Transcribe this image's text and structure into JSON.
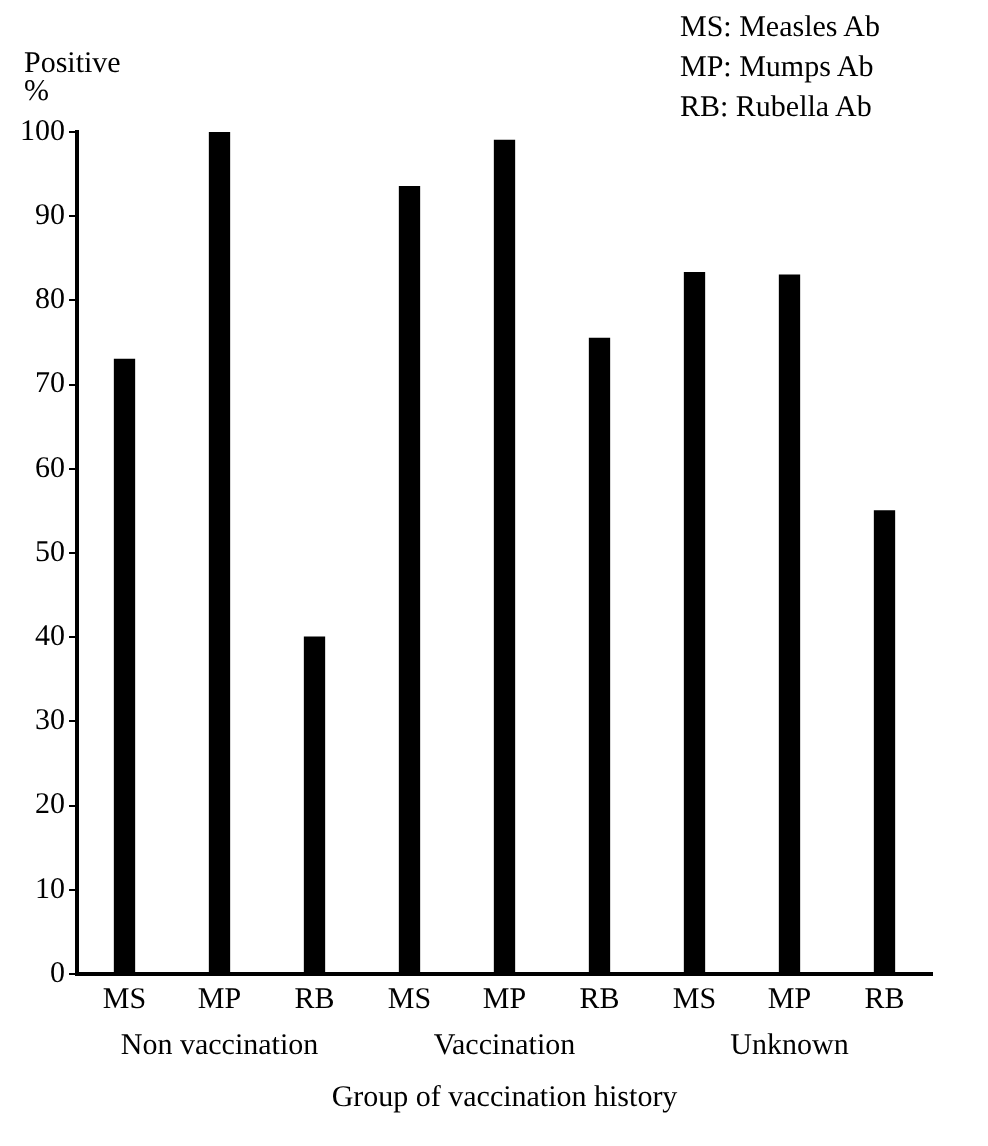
{
  "chart_data": {
    "type": "bar",
    "xlabel": "Group of vaccination history",
    "ylabel": "Positive %",
    "categories": [
      "MS",
      "MP",
      "RB",
      "MS",
      "MP",
      "RB",
      "MS",
      "MP",
      "RB"
    ],
    "values": [
      73,
      100,
      40,
      93.5,
      99,
      75.5,
      83.3,
      83,
      55
    ],
    "color": "#000000",
    "ylim": [
      0,
      100
    ],
    "yticks": [
      0,
      10,
      20,
      30,
      40,
      50,
      60,
      70,
      80,
      90,
      100
    ],
    "grid": false,
    "legend": false,
    "annotations": [
      "MS: Measles Ab",
      "MP: Mumps Ab",
      "RB: Rubella Ab",
      "Non vaccination",
      "Vaccination",
      "Unknown"
    ]
  }
}
